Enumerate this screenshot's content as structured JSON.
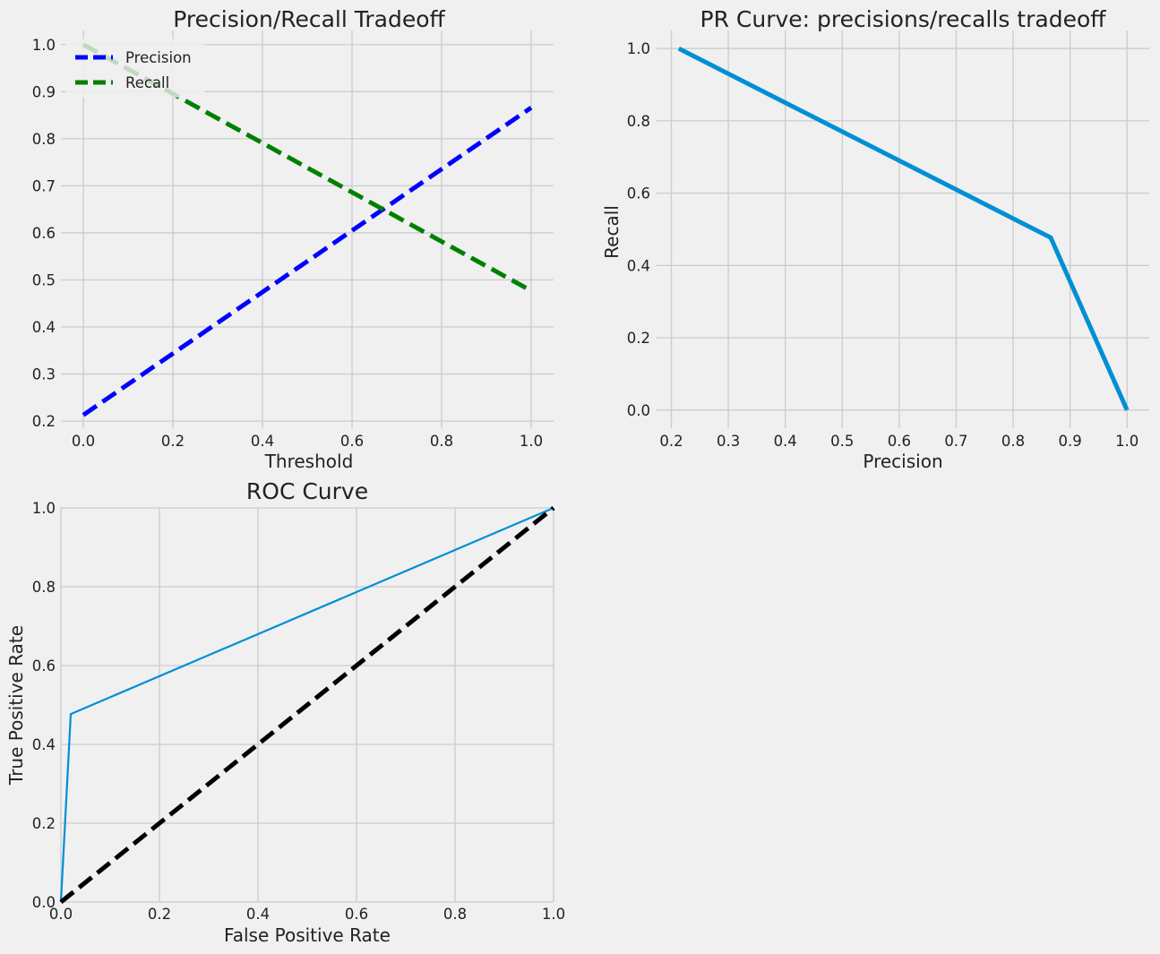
{
  "chart_data": [
    {
      "type": "line",
      "title": "Precision/Recall Tradeoff",
      "xlabel": "Threshold",
      "ylabel": "",
      "xlim": [
        -0.05,
        1.05
      ],
      "ylim": [
        0.185,
        1.03
      ],
      "xticks": [
        "0.0",
        "0.2",
        "0.4",
        "0.6",
        "0.8",
        "1.0"
      ],
      "yticks": [
        "0.2",
        "0.3",
        "0.4",
        "0.5",
        "0.6",
        "0.7",
        "0.8",
        "0.9",
        "1.0"
      ],
      "grid": true,
      "legend": "upper-left",
      "series": [
        {
          "name": "Precision",
          "color": "#0000ff",
          "dash": true,
          "x": [
            0,
            1
          ],
          "y": [
            0.213,
            0.866
          ]
        },
        {
          "name": "Recall",
          "color": "#008000",
          "dash": true,
          "x": [
            0,
            1
          ],
          "y": [
            1.0,
            0.477
          ]
        }
      ]
    },
    {
      "type": "line",
      "title": "PR Curve: precisions/recalls tradeoff",
      "xlabel": "Precision",
      "ylabel": "Recall",
      "xlim": [
        0.174,
        1.039
      ],
      "ylim": [
        -0.05,
        1.05
      ],
      "xticks": [
        "0.2",
        "0.3",
        "0.4",
        "0.5",
        "0.6",
        "0.7",
        "0.8",
        "0.9",
        "1.0"
      ],
      "yticks": [
        "0.0",
        "0.2",
        "0.4",
        "0.6",
        "0.8",
        "1.0"
      ],
      "grid": true,
      "series": [
        {
          "color": "#008fd5",
          "dash": false,
          "x": [
            0.213,
            0.866,
            1.0
          ],
          "y": [
            1.0,
            0.477,
            0.0
          ]
        }
      ]
    },
    {
      "type": "line",
      "title": "ROC Curve",
      "xlabel": "False Positive Rate",
      "ylabel": "True Positive Rate",
      "xlim": [
        0,
        1
      ],
      "ylim": [
        0,
        1
      ],
      "xticks": [
        "0.0",
        "0.2",
        "0.4",
        "0.6",
        "0.8",
        "1.0"
      ],
      "yticks": [
        "0.0",
        "0.2",
        "0.4",
        "0.6",
        "0.8",
        "1.0"
      ],
      "grid": true,
      "series": [
        {
          "color": "#008fd5",
          "dash": false,
          "thin": true,
          "x": [
            0,
            0.02,
            1.0
          ],
          "y": [
            0.0,
            0.477,
            1.0
          ]
        },
        {
          "color": "#000000",
          "dash": true,
          "x": [
            0,
            1
          ],
          "y": [
            0,
            1
          ]
        }
      ]
    }
  ]
}
